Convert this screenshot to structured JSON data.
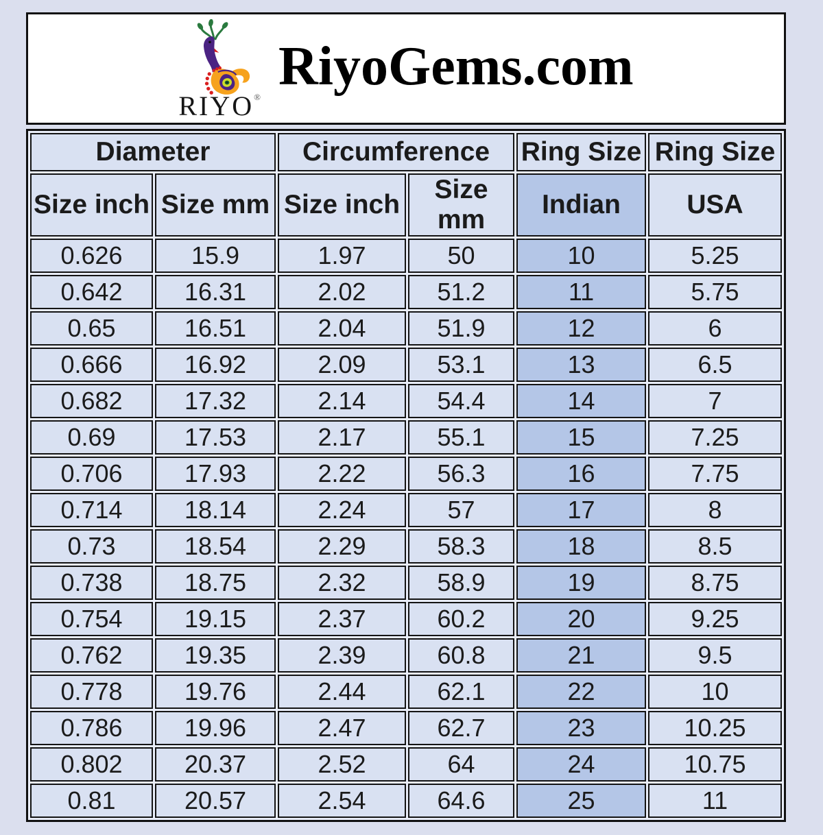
{
  "header": {
    "title": "RiyoGems.com",
    "logo": {
      "brand": "RIYO",
      "registered_mark": "®",
      "icon": "peacock-logo"
    }
  },
  "colors": {
    "page_bg": "#dbdfee",
    "cell_bg": "#d9e1f2",
    "indian_col_bg": "#b4c6e7",
    "table_border": "#141414",
    "header_box_bg": "#ffffff",
    "text": "#1b1b1b",
    "logo_purple": "#4b2383",
    "logo_orange": "#f6a21d",
    "logo_green": "#2a7a3e",
    "logo_red": "#da1f1f"
  },
  "chart_data": {
    "type": "table",
    "title": "RiyoGems.com",
    "column_groups": [
      "Diameter",
      "Circumference",
      "Ring Size",
      "Ring Size"
    ],
    "sub_headers": [
      "Size inch",
      "Size mm",
      "Size inch",
      "Size mm",
      "Indian",
      "USA"
    ],
    "rows": [
      [
        "0.626",
        "15.9",
        "1.97",
        "50",
        "10",
        "5.25"
      ],
      [
        "0.642",
        "16.31",
        "2.02",
        "51.2",
        "11",
        "5.75"
      ],
      [
        "0.65",
        "16.51",
        "2.04",
        "51.9",
        "12",
        "6"
      ],
      [
        "0.666",
        "16.92",
        "2.09",
        "53.1",
        "13",
        "6.5"
      ],
      [
        "0.682",
        "17.32",
        "2.14",
        "54.4",
        "14",
        "7"
      ],
      [
        "0.69",
        "17.53",
        "2.17",
        "55.1",
        "15",
        "7.25"
      ],
      [
        "0.706",
        "17.93",
        "2.22",
        "56.3",
        "16",
        "7.75"
      ],
      [
        "0.714",
        "18.14",
        "2.24",
        "57",
        "17",
        "8"
      ],
      [
        "0.73",
        "18.54",
        "2.29",
        "58.3",
        "18",
        "8.5"
      ],
      [
        "0.738",
        "18.75",
        "2.32",
        "58.9",
        "19",
        "8.75"
      ],
      [
        "0.754",
        "19.15",
        "2.37",
        "60.2",
        "20",
        "9.25"
      ],
      [
        "0.762",
        "19.35",
        "2.39",
        "60.8",
        "21",
        "9.5"
      ],
      [
        "0.778",
        "19.76",
        "2.44",
        "62.1",
        "22",
        "10"
      ],
      [
        "0.786",
        "19.96",
        "2.47",
        "62.7",
        "23",
        "10.25"
      ],
      [
        "0.802",
        "20.37",
        "2.52",
        "64",
        "24",
        "10.75"
      ],
      [
        "0.81",
        "20.57",
        "2.54",
        "64.6",
        "25",
        "11"
      ]
    ]
  }
}
